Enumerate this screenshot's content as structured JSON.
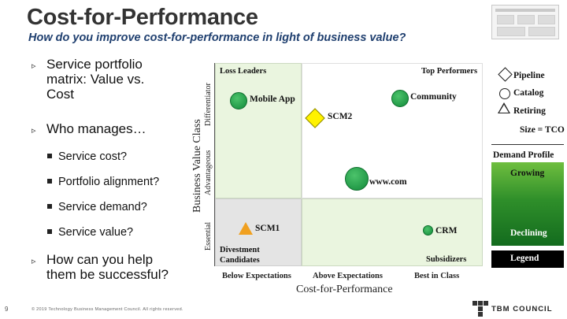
{
  "slide": {
    "title": "Cost-for-Performance",
    "subtitle": "How do you improve cost-for-performance in light of business value?",
    "page_number": "9",
    "copyright": "© 2019 Technology Business Management Council. All rights reserved.",
    "logo_text": "TBM COUNCIL"
  },
  "bullets": [
    {
      "level": 1,
      "lines": [
        "Service portfolio",
        "matrix: Value vs.",
        "Cost"
      ]
    },
    {
      "level": 1,
      "lines": [
        "Who manages…"
      ]
    },
    {
      "level": 2,
      "lines": [
        "Service cost?"
      ]
    },
    {
      "level": 2,
      "lines": [
        "Portfolio alignment?"
      ]
    },
    {
      "level": 2,
      "lines": [
        "Service demand?"
      ]
    },
    {
      "level": 2,
      "lines": [
        "Service value?"
      ]
    },
    {
      "level": 1,
      "lines": [
        "How can you help",
        "them be successful?"
      ]
    }
  ],
  "matrix": {
    "y_axis_title": "Business Value Class",
    "y_classes": [
      "Differentiator",
      "Advantageous",
      "Essential"
    ],
    "x_axis_title": "Cost-for-Performance",
    "x_classes": [
      "Below Expectations",
      "Above Expectations",
      "Best in Class"
    ],
    "quadrant_labels": {
      "top_left": "Loss Leaders",
      "top_right": "Top Performers",
      "bottom_left_1": "Divestment",
      "bottom_left_2": "Candidates",
      "bottom_right": "Subsidizers"
    },
    "items": {
      "mobile_app": "Mobile App",
      "community": "Community",
      "scm2": "SCM2",
      "www": "www.com",
      "scm1": "SCM1",
      "crm": "CRM"
    },
    "colors": {
      "loss_leaders_bg": "#eaf5df",
      "divestment_bg": "#e4e4e4",
      "service_dot": "#1ea547",
      "scm2_diamond": "#fff200",
      "scm1_triangle": "#f0a020"
    }
  },
  "legend": {
    "shape_pipeline": "Pipeline",
    "shape_catalog": "Catalog",
    "shape_retiring": "Retiring",
    "size": "Size = TCO",
    "color_title": "Demand Profile",
    "growing": "Growing",
    "declining": "Declining",
    "legend": "Legend"
  }
}
